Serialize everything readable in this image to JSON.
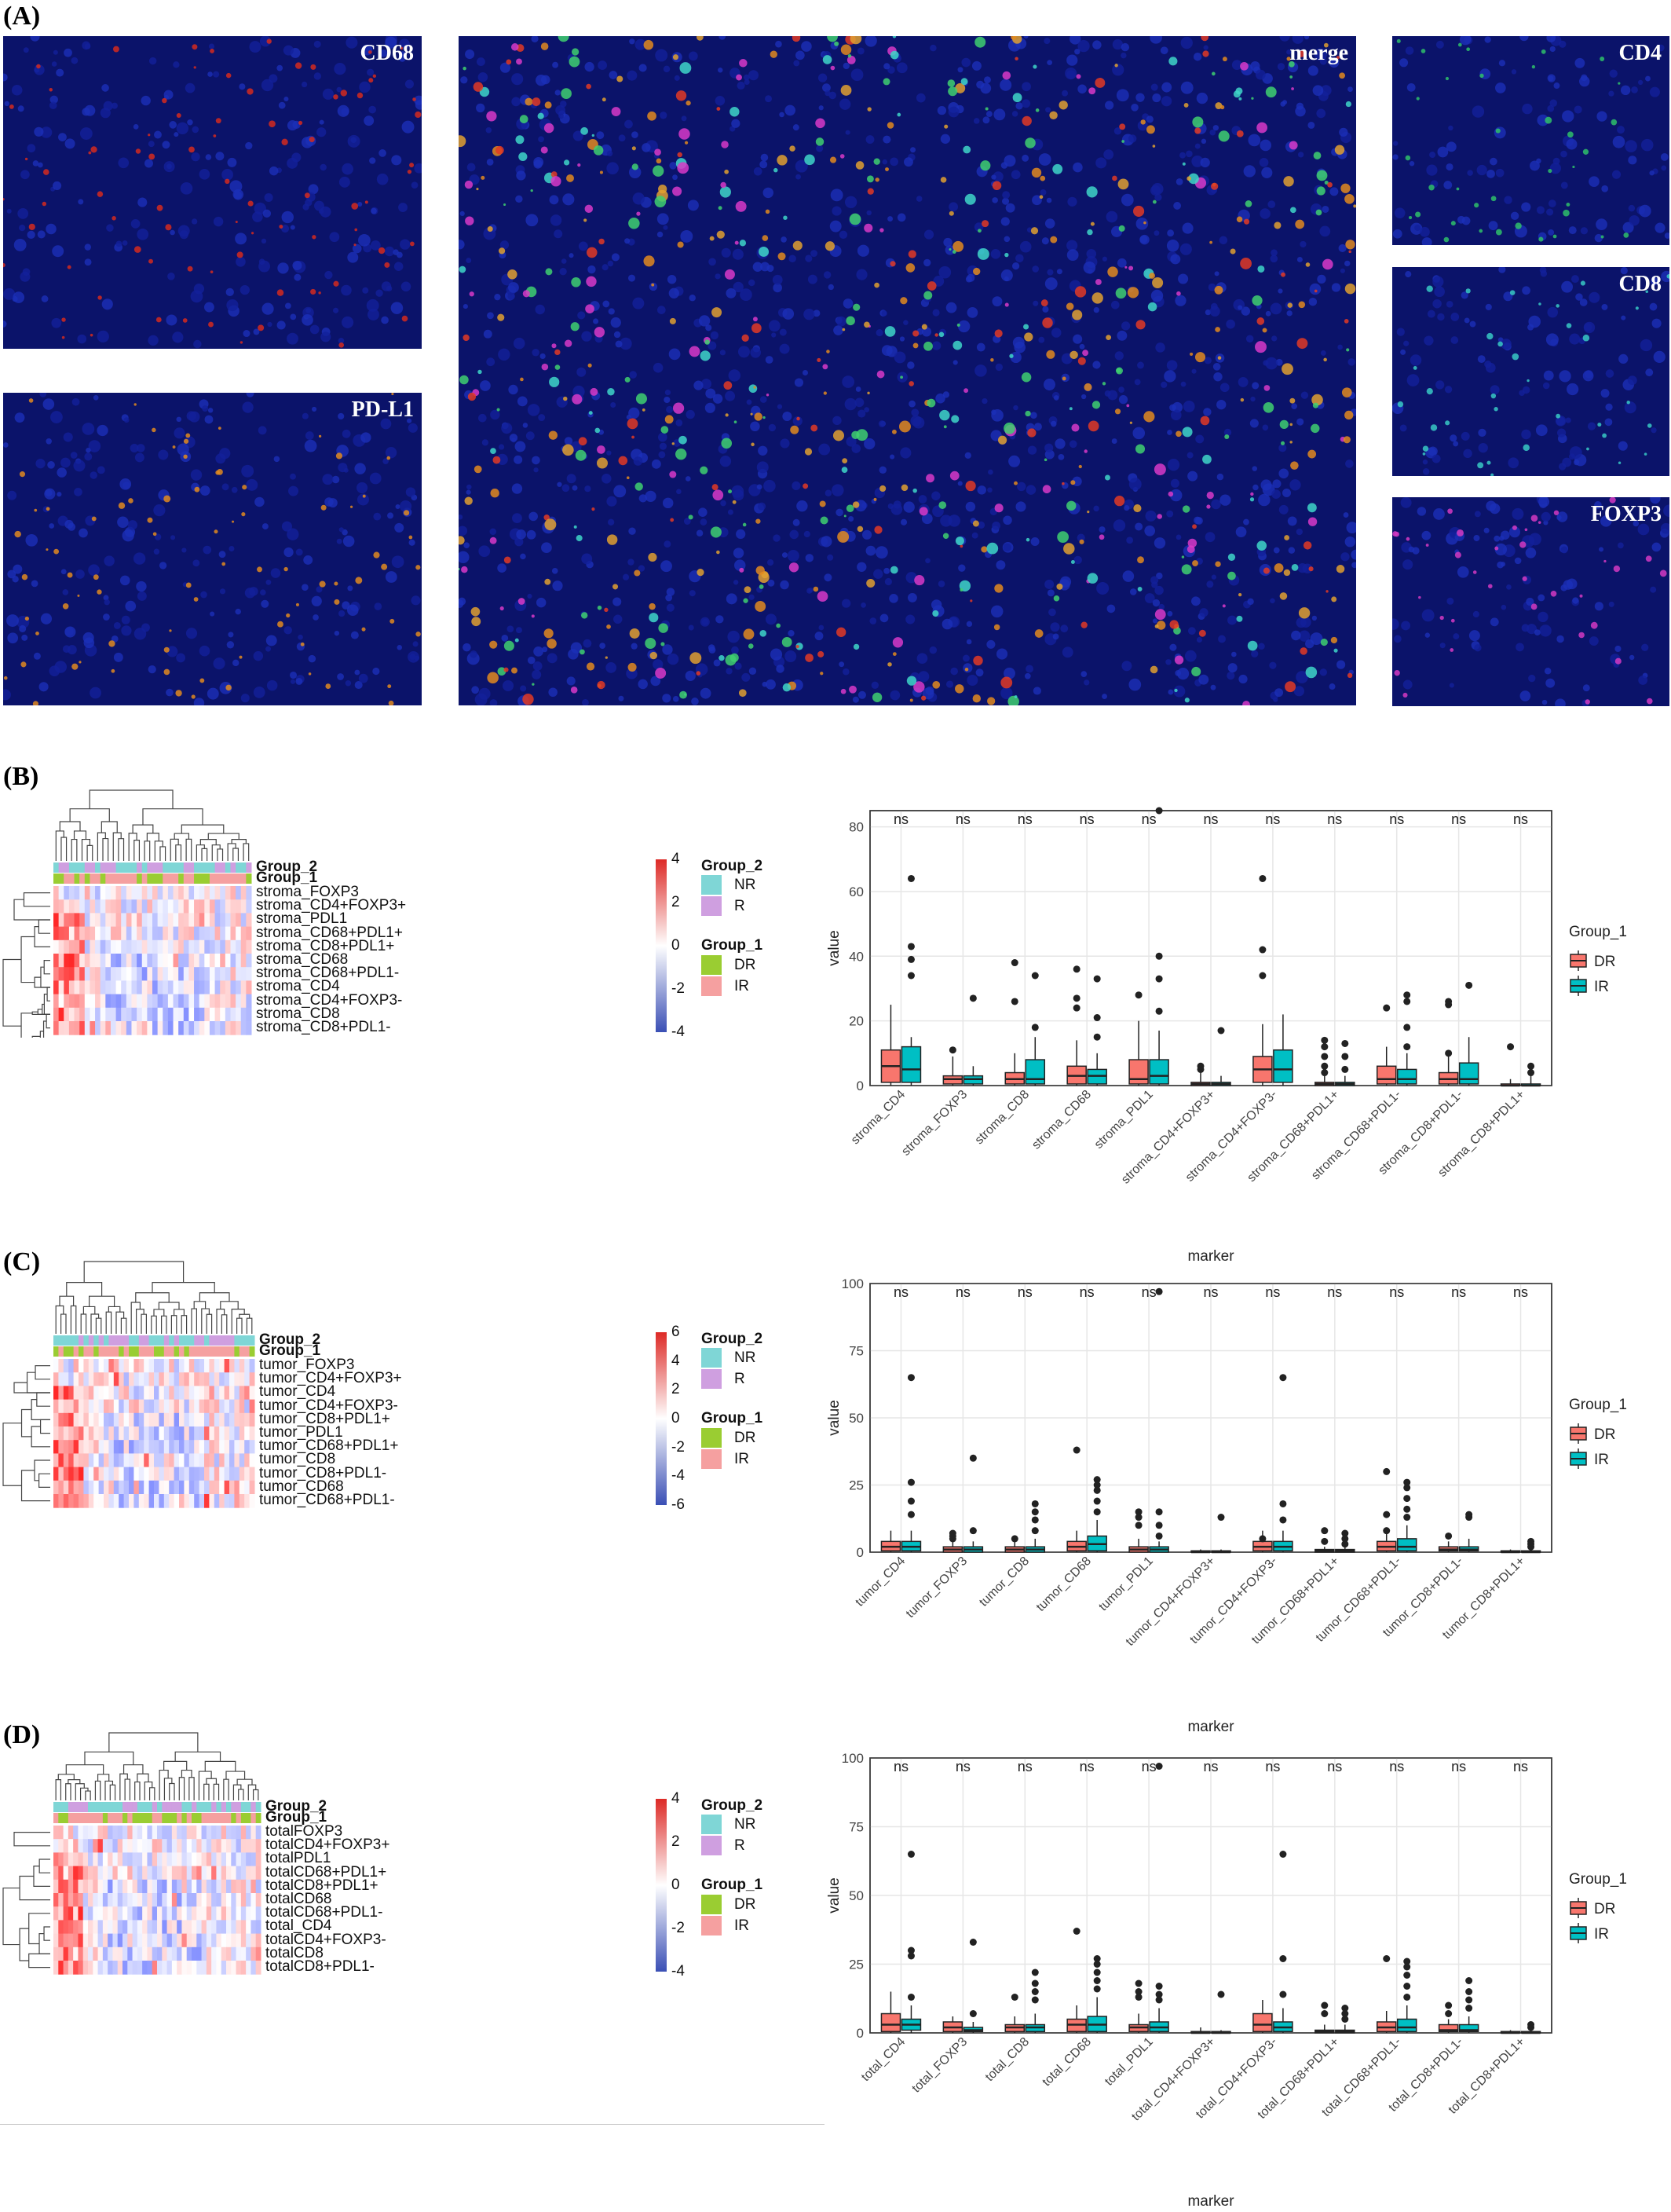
{
  "panel_labels": {
    "a": "(A)",
    "b": "(B)",
    "c": "(C)",
    "d": "(D)"
  },
  "micrographs": [
    {
      "label": "CD68",
      "tint": "#d42a1e"
    },
    {
      "label": "PD-L1",
      "tint": "#e08a20"
    },
    {
      "label": "merge",
      "tint": "#e0602a"
    },
    {
      "label": "CD4",
      "tint": "#2fbf6a"
    },
    {
      "label": "CD8",
      "tint": "#38c9c4"
    },
    {
      "label": "FOXP3",
      "tint": "#d33ac2"
    }
  ],
  "colors": {
    "DR": "#f8766d",
    "IR": "#00bfc4",
    "NR_bar": "#7fd6d6",
    "R_bar": "#cf9fe0",
    "DR_bar": "#9acd32",
    "IR_bar": "#f5a0a0"
  },
  "annotation_legend": {
    "group2_title": "Group_2",
    "group2_items": [
      "NR",
      "R"
    ],
    "group1_title": "Group_1",
    "group1_items": [
      "DR",
      "IR"
    ]
  },
  "heatmaps": [
    {
      "rows": [
        "stroma_FOXP3",
        "stroma_CD4+FOXP3+",
        "stroma_PDL1",
        "stroma_CD68+PDL1+",
        "stroma_CD8+PDL1+",
        "stroma_CD68",
        "stroma_CD68+PDL1-",
        "stroma_CD4",
        "stroma_CD4+FOXP3-",
        "stroma_CD8",
        "stroma_CD8+PDL1-"
      ],
      "scale_ticks": [
        "4",
        "2",
        "0",
        "-2",
        "-4"
      ]
    },
    {
      "rows": [
        "tumor_FOXP3",
        "tumor_CD4+FOXP3+",
        "tumor_CD4",
        "tumor_CD4+FOXP3-",
        "tumor_CD8+PDL1+",
        "tumor_PDL1",
        "tumor_CD68+PDL1+",
        "tumor_CD8",
        "tumor_CD8+PDL1-",
        "tumor_CD68",
        "tumor_CD68+PDL1-"
      ],
      "scale_ticks": [
        "6",
        "4",
        "2",
        "0",
        "-2",
        "-4",
        "-6"
      ]
    },
    {
      "rows": [
        "totalFOXP3",
        "totalCD4+FOXP3+",
        "totalPDL1",
        "totalCD68+PDL1+",
        "totalCD8+PDL1+",
        "totalCD68",
        "totalCD68+PDL1-",
        "total_CD4",
        "totalCD4+FOXP3-",
        "totalCD8",
        "totalCD8+PDL1-"
      ],
      "scale_ticks": [
        "4",
        "2",
        "0",
        "-2",
        "-4"
      ]
    }
  ],
  "chart_data": [
    {
      "type": "box",
      "ylabel": "value",
      "xlabel": "marker",
      "ylim": [
        0,
        85
      ],
      "yticks": [
        0,
        20,
        40,
        60,
        80
      ],
      "legend_title": "Group_1",
      "legend_items": [
        "DR",
        "IR"
      ],
      "legend_position": "right",
      "significance": "ns",
      "categories": [
        "stroma_CD4",
        "stroma_FOXP3",
        "stroma_CD8",
        "stroma_CD68",
        "stroma_PDL1",
        "stroma_CD4+FOXP3+",
        "stroma_CD4+FOXP3-",
        "stroma_CD68+PDL1+",
        "stroma_CD68+PDL1-",
        "stroma_CD8+PDL1-",
        "stroma_CD8+PDL1+"
      ],
      "series": [
        {
          "name": "DR",
          "boxes": [
            [
              0,
              1,
              6,
              11,
              25
            ],
            [
              0,
              0.5,
              2,
              3,
              9
            ],
            [
              0,
              0.5,
              2,
              4,
              10
            ],
            [
              0,
              0.5,
              3,
              6,
              14
            ],
            [
              0,
              0.5,
              2,
              8,
              20
            ],
            [
              0,
              0,
              0.5,
              1,
              4
            ],
            [
              0,
              1,
              5,
              9,
              19
            ],
            [
              0,
              0,
              0.5,
              1,
              3
            ],
            [
              0,
              0.5,
              2,
              6,
              12
            ],
            [
              0,
              0.5,
              2,
              4,
              9
            ],
            [
              0,
              0,
              0,
              0.5,
              2
            ]
          ],
          "outliers": [
            [],
            [
              11
            ],
            [
              26,
              38
            ],
            [
              24,
              27,
              36
            ],
            [
              28
            ],
            [
              5,
              6
            ],
            [
              34,
              42,
              64
            ],
            [
              4,
              6,
              9,
              12,
              14
            ],
            [
              24
            ],
            [
              10,
              25,
              26
            ],
            [
              12
            ]
          ]
        },
        {
          "name": "IR",
          "boxes": [
            [
              0,
              1,
              5,
              12,
              15
            ],
            [
              0,
              0.5,
              2,
              3,
              6
            ],
            [
              0,
              0.5,
              2,
              8,
              15
            ],
            [
              0,
              0.5,
              3,
              5,
              10
            ],
            [
              0,
              0.5,
              3,
              8,
              17
            ],
            [
              0,
              0,
              0.5,
              1,
              3
            ],
            [
              0,
              1,
              5,
              11,
              22
            ],
            [
              0,
              0,
              0.5,
              1,
              3
            ],
            [
              0,
              0.5,
              2,
              5,
              10
            ],
            [
              0,
              0.5,
              2,
              7,
              15
            ],
            [
              0,
              0,
              0,
              0.5,
              3
            ]
          ],
          "outliers": [
            [
              34,
              39,
              43,
              64
            ],
            [
              27
            ],
            [
              18,
              34
            ],
            [
              15,
              21,
              33
            ],
            [
              23,
              33,
              40,
              85
            ],
            [
              17
            ],
            [],
            [
              5,
              9,
              13
            ],
            [
              12,
              18,
              26,
              28
            ],
            [
              31
            ],
            [
              4,
              6
            ]
          ]
        }
      ]
    },
    {
      "type": "box",
      "ylabel": "value",
      "xlabel": "marker",
      "ylim": [
        0,
        100
      ],
      "yticks": [
        0,
        25,
        50,
        75,
        100
      ],
      "legend_title": "Group_1",
      "legend_items": [
        "DR",
        "IR"
      ],
      "legend_position": "right",
      "significance": "ns",
      "categories": [
        "tumor_CD4",
        "tumor_FOXP3",
        "tumor_CD8",
        "tumor_CD68",
        "tumor_PDL1",
        "tumor_CD4+FOXP3+",
        "tumor_CD4+FOXP3-",
        "tumor_CD68+PDL1+",
        "tumor_CD68+PDL1-",
        "tumor_CD8+PDL1-",
        "tumor_CD8+PDL1+"
      ],
      "series": [
        {
          "name": "DR",
          "boxes": [
            [
              0,
              0.5,
              2,
              4,
              8
            ],
            [
              0,
              0,
              1,
              2,
              4
            ],
            [
              0,
              0,
              1,
              2,
              4
            ],
            [
              0,
              0.5,
              2,
              4,
              8
            ],
            [
              0,
              0,
              1,
              2,
              5
            ],
            [
              0,
              0,
              0,
              0.5,
              1
            ],
            [
              0,
              0.5,
              2,
              4,
              8
            ],
            [
              0,
              0,
              0.5,
              1,
              2
            ],
            [
              0,
              0.5,
              2,
              4,
              8
            ],
            [
              0,
              0.5,
              1,
              2,
              4
            ],
            [
              0,
              0,
              0,
              0.5,
              1
            ]
          ],
          "outliers": [
            [],
            [
              5,
              6,
              7
            ],
            [
              5
            ],
            [
              38
            ],
            [
              10,
              13,
              15
            ],
            [],
            [
              5
            ],
            [
              4,
              8
            ],
            [
              8,
              14,
              30
            ],
            [
              6
            ],
            []
          ]
        },
        {
          "name": "IR",
          "boxes": [
            [
              0,
              0.5,
              2,
              4,
              8
            ],
            [
              0,
              0,
              1,
              2,
              4
            ],
            [
              0,
              0,
              1,
              2,
              5
            ],
            [
              0,
              0.5,
              3,
              6,
              12
            ],
            [
              0,
              0,
              1,
              2,
              4
            ],
            [
              0,
              0,
              0,
              0.5,
              1
            ],
            [
              0,
              0.5,
              2,
              4,
              8
            ],
            [
              0,
              0,
              0.5,
              1,
              2
            ],
            [
              0,
              0.5,
              2,
              5,
              10
            ],
            [
              0,
              0.5,
              1,
              2,
              5
            ],
            [
              0,
              0,
              0,
              0.5,
              1.5
            ]
          ],
          "outliers": [
            [
              14,
              19,
              26,
              65
            ],
            [
              8,
              35
            ],
            [
              8,
              12,
              15,
              18
            ],
            [
              15,
              19,
              23,
              25,
              27
            ],
            [
              6,
              10,
              15,
              97
            ],
            [
              13
            ],
            [
              12,
              18,
              65
            ],
            [
              3,
              5,
              7
            ],
            [
              13,
              16,
              20,
              24,
              26
            ],
            [
              13,
              14
            ],
            [
              2,
              3,
              4
            ]
          ]
        }
      ]
    },
    {
      "type": "box",
      "ylabel": "value",
      "xlabel": "marker",
      "ylim": [
        0,
        100
      ],
      "yticks": [
        0,
        25,
        50,
        75,
        100
      ],
      "legend_title": "Group_1",
      "legend_items": [
        "DR",
        "IR"
      ],
      "legend_position": "right",
      "significance": "ns",
      "categories": [
        "total_CD4",
        "total_FOXP3",
        "total_CD8",
        "total_CD68",
        "total_PDL1",
        "total_CD4+FOXP3+",
        "total_CD4+FOXP3-",
        "total_CD68+PDL1+",
        "total_CD68+PDL1-",
        "total_CD8+PDL1-",
        "total_CD8+PDL1+"
      ],
      "series": [
        {
          "name": "DR",
          "boxes": [
            [
              0,
              0.5,
              3,
              7,
              15
            ],
            [
              0,
              0.5,
              2,
              4,
              6
            ],
            [
              0,
              0.5,
              2,
              3,
              6
            ],
            [
              0,
              0.5,
              3,
              5,
              10
            ],
            [
              0,
              0.5,
              2,
              3,
              7
            ],
            [
              0,
              0,
              0,
              0.5,
              2
            ],
            [
              0,
              0.5,
              3,
              7,
              12
            ],
            [
              0,
              0,
              0.5,
              1,
              3
            ],
            [
              0,
              0.5,
              2,
              4,
              8
            ],
            [
              0,
              0.5,
              1,
              3,
              5
            ],
            [
              0,
              0,
              0,
              0.5,
              1
            ]
          ],
          "outliers": [
            [],
            [],
            [
              13
            ],
            [
              37
            ],
            [
              13,
              15,
              18
            ],
            [],
            [],
            [
              7,
              10
            ],
            [
              27
            ],
            [
              7,
              10
            ],
            []
          ]
        },
        {
          "name": "IR",
          "boxes": [
            [
              0,
              1,
              3,
              5,
              10
            ],
            [
              0,
              0.5,
              1,
              2,
              4
            ],
            [
              0,
              0.5,
              2,
              3,
              7
            ],
            [
              0,
              0.5,
              3,
              6,
              13
            ],
            [
              0,
              0.5,
              2,
              4,
              9
            ],
            [
              0,
              0,
              0,
              0.5,
              1
            ],
            [
              0,
              0.5,
              2,
              4,
              9
            ],
            [
              0,
              0,
              0.5,
              1,
              3
            ],
            [
              0,
              0.5,
              2,
              5,
              10
            ],
            [
              0,
              0.5,
              1,
              3,
              6
            ],
            [
              0,
              0,
              0,
              0.5,
              2
            ]
          ],
          "outliers": [
            [
              13,
              28,
              30,
              65
            ],
            [
              33,
              7
            ],
            [
              12,
              15,
              18,
              22
            ],
            [
              16,
              19,
              22,
              25,
              27
            ],
            [
              12,
              14,
              17,
              97
            ],
            [
              14
            ],
            [
              14,
              27,
              65
            ],
            [
              5,
              7,
              9
            ],
            [
              13,
              17,
              21,
              24,
              26
            ],
            [
              9,
              12,
              15,
              19
            ],
            [
              2,
              3
            ]
          ]
        }
      ]
    }
  ]
}
